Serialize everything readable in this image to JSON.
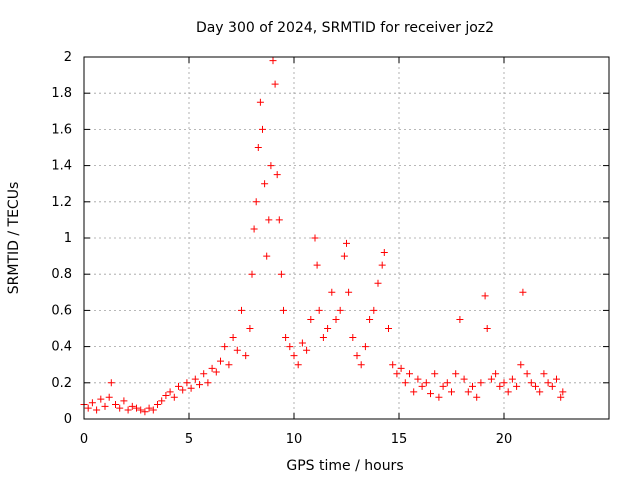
{
  "chart_data": {
    "type": "scatter",
    "title": "Day 300 of 2024, SRMTID for receiver joz2",
    "xlabel": "GPS time / hours",
    "ylabel": "SRMTID / TECUs",
    "xlim": [
      0,
      25
    ],
    "ylim": [
      0,
      2
    ],
    "xticks": [
      0,
      5,
      10,
      15,
      20
    ],
    "xtick_labels": [
      "0",
      "5",
      "10",
      "15",
      "20"
    ],
    "yticks": [
      0,
      0.2,
      0.4,
      0.6,
      0.8,
      1,
      1.2,
      1.4,
      1.6,
      1.8,
      2
    ],
    "ytick_labels": [
      "0",
      "0.2",
      "0.4",
      "0.6",
      "0.8",
      "1",
      "1.2",
      "1.4",
      "1.6",
      "1.8",
      "2"
    ],
    "grid": true,
    "marker": "+",
    "color": "#ff0000",
    "series": [
      {
        "name": "SRMTID",
        "points": [
          [
            0.0,
            0.08
          ],
          [
            0.2,
            0.06
          ],
          [
            0.4,
            0.09
          ],
          [
            0.6,
            0.05
          ],
          [
            0.8,
            0.11
          ],
          [
            1.0,
            0.07
          ],
          [
            1.2,
            0.12
          ],
          [
            1.3,
            0.2
          ],
          [
            1.5,
            0.08
          ],
          [
            1.7,
            0.06
          ],
          [
            1.9,
            0.1
          ],
          [
            2.1,
            0.05
          ],
          [
            2.3,
            0.07
          ],
          [
            2.5,
            0.06
          ],
          [
            2.7,
            0.05
          ],
          [
            2.9,
            0.04
          ],
          [
            3.1,
            0.06
          ],
          [
            3.3,
            0.05
          ],
          [
            3.5,
            0.08
          ],
          [
            3.7,
            0.1
          ],
          [
            3.9,
            0.13
          ],
          [
            4.1,
            0.15
          ],
          [
            4.3,
            0.12
          ],
          [
            4.5,
            0.18
          ],
          [
            4.7,
            0.16
          ],
          [
            4.9,
            0.2
          ],
          [
            5.1,
            0.17
          ],
          [
            5.3,
            0.22
          ],
          [
            5.5,
            0.19
          ],
          [
            5.7,
            0.25
          ],
          [
            5.9,
            0.2
          ],
          [
            6.1,
            0.28
          ],
          [
            6.3,
            0.26
          ],
          [
            6.5,
            0.32
          ],
          [
            6.7,
            0.4
          ],
          [
            6.9,
            0.3
          ],
          [
            7.1,
            0.45
          ],
          [
            7.3,
            0.38
          ],
          [
            7.5,
            0.6
          ],
          [
            7.7,
            0.35
          ],
          [
            7.9,
            0.5
          ],
          [
            8.0,
            0.8
          ],
          [
            8.1,
            1.05
          ],
          [
            8.2,
            1.2
          ],
          [
            8.3,
            1.5
          ],
          [
            8.4,
            1.75
          ],
          [
            8.5,
            1.6
          ],
          [
            8.6,
            1.3
          ],
          [
            8.7,
            0.9
          ],
          [
            8.8,
            1.1
          ],
          [
            8.9,
            1.4
          ],
          [
            9.0,
            1.98
          ],
          [
            9.1,
            1.85
          ],
          [
            9.2,
            1.35
          ],
          [
            9.3,
            1.1
          ],
          [
            9.4,
            0.8
          ],
          [
            9.5,
            0.6
          ],
          [
            9.6,
            0.45
          ],
          [
            9.8,
            0.4
          ],
          [
            10.0,
            0.35
          ],
          [
            10.2,
            0.3
          ],
          [
            10.4,
            0.42
          ],
          [
            10.6,
            0.38
          ],
          [
            10.8,
            0.55
          ],
          [
            11.0,
            1.0
          ],
          [
            11.1,
            0.85
          ],
          [
            11.2,
            0.6
          ],
          [
            11.4,
            0.45
          ],
          [
            11.6,
            0.5
          ],
          [
            11.8,
            0.7
          ],
          [
            12.0,
            0.55
          ],
          [
            12.2,
            0.6
          ],
          [
            12.4,
            0.9
          ],
          [
            12.5,
            0.97
          ],
          [
            12.6,
            0.7
          ],
          [
            12.8,
            0.45
          ],
          [
            13.0,
            0.35
          ],
          [
            13.2,
            0.3
          ],
          [
            13.4,
            0.4
          ],
          [
            13.6,
            0.55
          ],
          [
            13.8,
            0.6
          ],
          [
            14.0,
            0.75
          ],
          [
            14.2,
            0.85
          ],
          [
            14.3,
            0.92
          ],
          [
            14.5,
            0.5
          ],
          [
            14.7,
            0.3
          ],
          [
            14.9,
            0.25
          ],
          [
            15.1,
            0.28
          ],
          [
            15.3,
            0.2
          ],
          [
            15.5,
            0.25
          ],
          [
            15.7,
            0.15
          ],
          [
            15.9,
            0.22
          ],
          [
            16.1,
            0.18
          ],
          [
            16.3,
            0.2
          ],
          [
            16.5,
            0.14
          ],
          [
            16.7,
            0.25
          ],
          [
            16.9,
            0.12
          ],
          [
            17.1,
            0.18
          ],
          [
            17.3,
            0.2
          ],
          [
            17.5,
            0.15
          ],
          [
            17.7,
            0.25
          ],
          [
            17.9,
            0.55
          ],
          [
            18.1,
            0.22
          ],
          [
            18.3,
            0.15
          ],
          [
            18.5,
            0.18
          ],
          [
            18.7,
            0.12
          ],
          [
            18.9,
            0.2
          ],
          [
            19.1,
            0.68
          ],
          [
            19.2,
            0.5
          ],
          [
            19.4,
            0.22
          ],
          [
            19.6,
            0.25
          ],
          [
            19.8,
            0.18
          ],
          [
            20.0,
            0.2
          ],
          [
            20.2,
            0.15
          ],
          [
            20.4,
            0.22
          ],
          [
            20.6,
            0.18
          ],
          [
            20.8,
            0.3
          ],
          [
            20.9,
            0.7
          ],
          [
            21.1,
            0.25
          ],
          [
            21.3,
            0.2
          ],
          [
            21.5,
            0.18
          ],
          [
            21.7,
            0.15
          ],
          [
            21.9,
            0.25
          ],
          [
            22.1,
            0.2
          ],
          [
            22.3,
            0.18
          ],
          [
            22.5,
            0.22
          ],
          [
            22.7,
            0.12
          ],
          [
            22.8,
            0.15
          ]
        ]
      }
    ]
  }
}
